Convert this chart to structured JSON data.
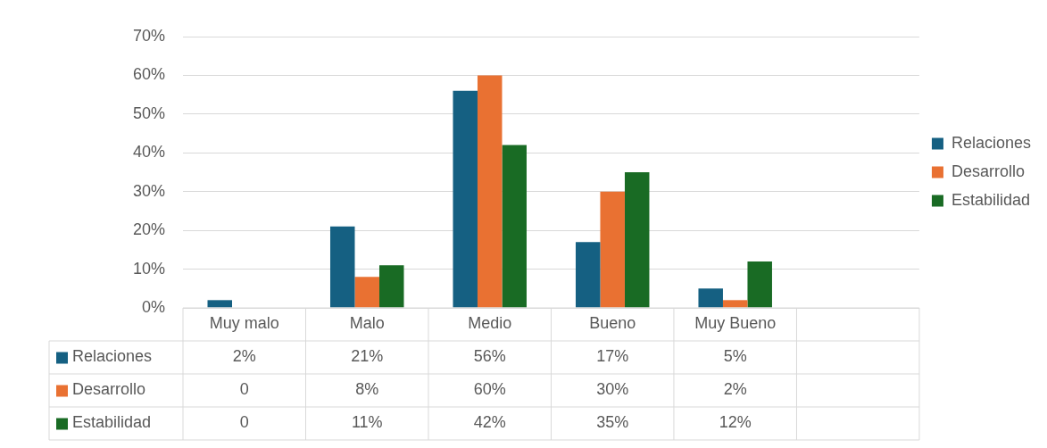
{
  "chart_data": {
    "type": "bar",
    "categories": [
      "Muy malo",
      "Malo",
      "Medio",
      "Bueno",
      "Muy Bueno",
      null
    ],
    "series": [
      {
        "name": "Relaciones",
        "color": "#156082",
        "values": [
          2,
          21,
          56,
          17,
          5,
          null
        ],
        "value_labels": [
          "2%",
          "21%",
          "56%",
          "17%",
          "5%",
          null
        ]
      },
      {
        "name": "Desarrollo",
        "color": "#e97132",
        "values": [
          0,
          8,
          60,
          30,
          2,
          null
        ],
        "value_labels": [
          "0",
          "8%",
          "60%",
          "30%",
          "2%",
          null
        ]
      },
      {
        "name": "Estabilidad",
        "color": "#196b24",
        "values": [
          0,
          11,
          42,
          35,
          12,
          null
        ],
        "value_labels": [
          "0",
          "11%",
          "42%",
          "35%",
          "12%",
          null
        ]
      }
    ],
    "ylim": [
      0,
      70
    ],
    "yticks": [
      {
        "value": 0,
        "label": "0%"
      },
      {
        "value": 10,
        "label": "10%"
      },
      {
        "value": 20,
        "label": "20%"
      },
      {
        "value": 30,
        "label": "30%"
      },
      {
        "value": 40,
        "label": "40%"
      },
      {
        "value": 50,
        "label": "50%"
      },
      {
        "value": 60,
        "label": "60%"
      },
      {
        "value": 70,
        "label": "70%"
      }
    ],
    "grid": "y",
    "legend": "right"
  }
}
